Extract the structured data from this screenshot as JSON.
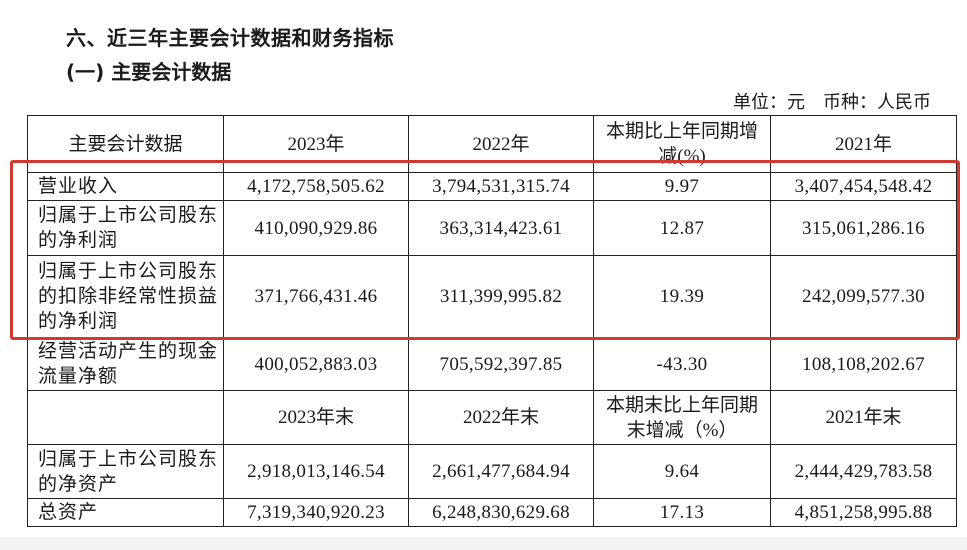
{
  "heading": "六、近三年主要会计数据和财务指标",
  "subheading": "(一) 主要会计数据",
  "unit_line": "单位：元　币种：人民币",
  "table": {
    "header": [
      "主要会计数据",
      "2023年",
      "2022年",
      "本期比上年同期增减(%)",
      "2021年"
    ],
    "rows": [
      [
        "营业收入",
        "4,172,758,505.62",
        "3,794,531,315.74",
        "9.97",
        "3,407,454,548.42"
      ],
      [
        "归属于上市公司股东的净利润",
        "410,090,929.86",
        "363,314,423.61",
        "12.87",
        "315,061,286.16"
      ],
      [
        "归属于上市公司股东的扣除非经常性损益的净利润",
        "371,766,431.46",
        "311,399,995.82",
        "19.39",
        "242,099,577.30"
      ],
      [
        "经营活动产生的现金流量净额",
        "400,052,883.03",
        "705,592,397.85",
        "-43.30",
        "108,108,202.67"
      ]
    ],
    "header2": [
      "",
      "2023年末",
      "2022年末",
      "本期末比上年同期末增减（%）",
      "2021年末"
    ],
    "rows2": [
      [
        "归属于上市公司股东的净资产",
        "2,918,013,146.54",
        "2,661,477,684.94",
        "9.64",
        "2,444,429,783.58"
      ],
      [
        "总资产",
        "7,319,340,920.23",
        "6,248,830,629.68",
        "17.13",
        "4,851,258,995.88"
      ]
    ]
  },
  "highlight_color": "#d03a30"
}
